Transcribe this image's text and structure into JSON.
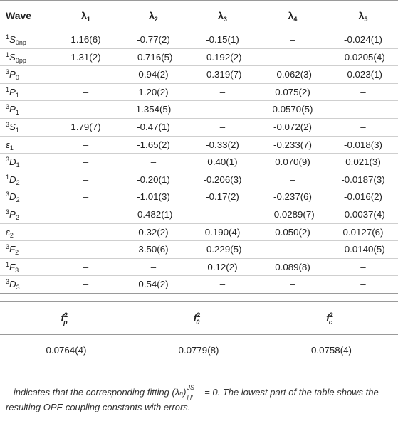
{
  "headers": {
    "wave": "Wave",
    "lambdas": [
      {
        "sym": "λ",
        "idx": "1"
      },
      {
        "sym": "λ",
        "idx": "2"
      },
      {
        "sym": "λ",
        "idx": "3"
      },
      {
        "sym": "λ",
        "idx": "4"
      },
      {
        "sym": "λ",
        "idx": "5"
      }
    ]
  },
  "rows": [
    {
      "sup": "1",
      "main": "S",
      "sub": "0np",
      "values": [
        "1.16(6)",
        "-0.77(2)",
        "-0.15(1)",
        "–",
        "-0.024(1)"
      ]
    },
    {
      "sup": "1",
      "main": "S",
      "sub": "0pp",
      "values": [
        "1.31(2)",
        "-0.716(5)",
        "-0.192(2)",
        "–",
        "-0.0205(4)"
      ]
    },
    {
      "sup": "3",
      "main": "P",
      "sub": "0",
      "values": [
        "–",
        "0.94(2)",
        "-0.319(7)",
        "-0.062(3)",
        "-0.023(1)"
      ]
    },
    {
      "sup": "1",
      "main": "P",
      "sub": "1",
      "values": [
        "–",
        "1.20(2)",
        "–",
        "0.075(2)",
        "–"
      ]
    },
    {
      "sup": "3",
      "main": "P",
      "sub": "1",
      "values": [
        "–",
        "1.354(5)",
        "–",
        "0.0570(5)",
        "–"
      ]
    },
    {
      "sup": "3",
      "main": "S",
      "sub": "1",
      "values": [
        "1.79(7)",
        "-0.47(1)",
        "–",
        "-0.072(2)",
        "–"
      ]
    },
    {
      "sup": "",
      "main": "ε",
      "sub": "1",
      "values": [
        "–",
        "-1.65(2)",
        "-0.33(2)",
        "-0.233(7)",
        "-0.018(3)"
      ]
    },
    {
      "sup": "3",
      "main": "D",
      "sub": "1",
      "values": [
        "–",
        "–",
        "0.40(1)",
        "0.070(9)",
        "0.021(3)"
      ]
    },
    {
      "sup": "1",
      "main": "D",
      "sub": "2",
      "values": [
        "–",
        "-0.20(1)",
        "-0.206(3)",
        "–",
        "-0.0187(3)"
      ]
    },
    {
      "sup": "3",
      "main": "D",
      "sub": "2",
      "values": [
        "–",
        "-1.01(3)",
        "-0.17(2)",
        "-0.237(6)",
        "-0.016(2)"
      ]
    },
    {
      "sup": "3",
      "main": "P",
      "sub": "2",
      "values": [
        "–",
        "-0.482(1)",
        "–",
        "-0.0289(7)",
        "-0.0037(4)"
      ]
    },
    {
      "sup": "",
      "main": "ε",
      "sub": "2",
      "values": [
        "–",
        "0.32(2)",
        "0.190(4)",
        "0.050(2)",
        "0.0127(6)"
      ]
    },
    {
      "sup": "3",
      "main": "F",
      "sub": "2",
      "values": [
        "–",
        "3.50(6)",
        "-0.229(5)",
        "–",
        "-0.0140(5)"
      ]
    },
    {
      "sup": "1",
      "main": "F",
      "sub": "3",
      "values": [
        "–",
        "–",
        "0.12(2)",
        "0.089(8)",
        "–"
      ]
    },
    {
      "sup": "3",
      "main": "D",
      "sub": "3",
      "values": [
        "–",
        "0.54(2)",
        "–",
        "–",
        "–"
      ]
    }
  ],
  "couplings": [
    {
      "sym": "f",
      "sup": "2",
      "sub": "p",
      "value": "0.0764(4)"
    },
    {
      "sym": "f",
      "sup": "2",
      "sub": "0",
      "value": "0.0779(8)"
    },
    {
      "sym": "f",
      "sup": "2",
      "sub": "c",
      "value": "0.0758(4)"
    }
  ],
  "footnote": {
    "prefix": "– indicates that the corresponding fitting (λ",
    "n": "n",
    "close": ")",
    "sub": "l,l′",
    "sup": "JS",
    "suffix": " = 0. The lowest part of the table shows the resulting OPE coupling constants with errors."
  }
}
